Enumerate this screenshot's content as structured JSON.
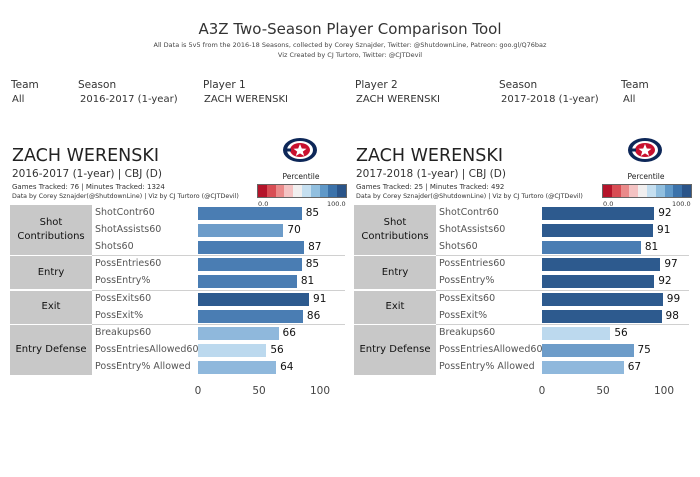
{
  "header": {
    "title": "A3Z Two-Season Player Comparison Tool",
    "subtitle_1": "All Data is 5v5 from the 2016-18 Seasons, collected by Corey Sznajder, Twitter: @ShutdownLine, Patreon: goo.gl/Q76baz",
    "subtitle_2": "Viz Created by CJ Turtoro, Twitter: @CJTDevil"
  },
  "filters": {
    "team_left": {
      "label": "Team",
      "value": "All"
    },
    "season_left": {
      "label": "Season",
      "value": "2016-2017 (1-year)"
    },
    "player_1": {
      "label": "Player 1",
      "value": "ZACH WERENSKI"
    },
    "player_2": {
      "label": "Player 2",
      "value": "ZACH WERENSKI"
    },
    "season_right": {
      "label": "Season",
      "value": "2017-2018 (1-year)"
    },
    "team_right": {
      "label": "Team",
      "value": "All"
    }
  },
  "legend": {
    "title": "Percentile",
    "min_label": "0.0",
    "max_label": "100.0",
    "colors": [
      "#b4142a",
      "#d84d54",
      "#ea8a8a",
      "#f4c3c3",
      "#f1efef",
      "#c5dff0",
      "#91bfdf",
      "#5f98c8",
      "#3b72aa",
      "#2a5489"
    ]
  },
  "chart_data": [
    {
      "type": "bar",
      "panel": "left",
      "player": "ZACH WERENSKI",
      "season_line": "2016-2017 (1-year) | CBJ (D)",
      "games_line": "Games Tracked: 76  | Minutes Tracked: 1324",
      "credit_line": "Data by Corey Sznajder(@ShutdownLine) | Viz by CJ Turtoro (@CJTDevil)",
      "xlim": [
        0,
        100
      ],
      "x_ticks": [
        "0",
        "50",
        "100"
      ],
      "groups": [
        {
          "name": "Shot Contributions",
          "metrics": [
            {
              "label": "ShotContr60",
              "value": 85
            },
            {
              "label": "ShotAssists60",
              "value": 70
            },
            {
              "label": "Shots60",
              "value": 87
            }
          ]
        },
        {
          "name": "Entry",
          "metrics": [
            {
              "label": "PossEntries60",
              "value": 85
            },
            {
              "label": "PossEntry%",
              "value": 81
            }
          ]
        },
        {
          "name": "Exit",
          "metrics": [
            {
              "label": "PossExits60",
              "value": 91
            },
            {
              "label": "PossExit%",
              "value": 86
            }
          ]
        },
        {
          "name": "Entry Defense",
          "metrics": [
            {
              "label": "Breakups60",
              "value": 66
            },
            {
              "label": "PossEntriesAllowed60",
              "value": 56
            },
            {
              "label": "PossEntry% Allowed",
              "value": 64
            }
          ]
        }
      ]
    },
    {
      "type": "bar",
      "panel": "right",
      "player": "ZACH WERENSKI",
      "season_line": "2017-2018 (1-year) | CBJ (D)",
      "games_line": "Games Tracked: 25  | Minutes Tracked: 492",
      "credit_line": "Data by Corey Sznajder(@ShutdownLine) | Viz by CJ Turtoro (@CJTDevil)",
      "xlim": [
        0,
        100
      ],
      "x_ticks": [
        "0",
        "50",
        "100"
      ],
      "groups": [
        {
          "name": "Shot Contributions",
          "metrics": [
            {
              "label": "ShotContr60",
              "value": 92
            },
            {
              "label": "ShotAssists60",
              "value": 91
            },
            {
              "label": "Shots60",
              "value": 81
            }
          ]
        },
        {
          "name": "Entry",
          "metrics": [
            {
              "label": "PossEntries60",
              "value": 97
            },
            {
              "label": "PossEntry%",
              "value": 92
            }
          ]
        },
        {
          "name": "Exit",
          "metrics": [
            {
              "label": "PossExits60",
              "value": 99
            },
            {
              "label": "PossExit%",
              "value": 98
            }
          ]
        },
        {
          "name": "Entry Defense",
          "metrics": [
            {
              "label": "Breakups60",
              "value": 56
            },
            {
              "label": "PossEntriesAllowed60",
              "value": 75
            },
            {
              "label": "PossEntry% Allowed",
              "value": 67
            }
          ]
        }
      ]
    }
  ]
}
